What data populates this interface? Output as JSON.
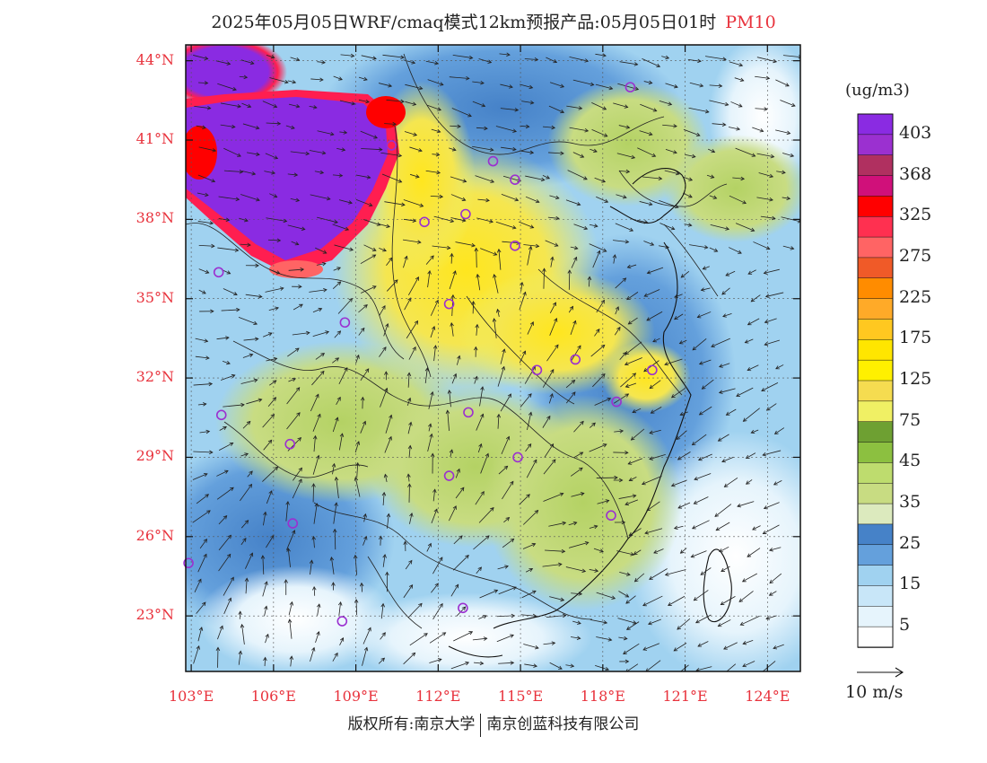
{
  "title": {
    "main": "2025年05月05日WRF/cmaq模式12km预报产品:05月05日01时",
    "pollutant": "PM10"
  },
  "axes": {
    "lat_labels": [
      "44°N",
      "41°N",
      "38°N",
      "35°N",
      "32°N",
      "29°N",
      "26°N",
      "23°N"
    ],
    "lat_values": [
      44,
      41,
      38,
      35,
      32,
      29,
      26,
      23
    ],
    "lon_labels": [
      "103°E",
      "106°E",
      "109°E",
      "112°E",
      "115°E",
      "118°E",
      "121°E",
      "124°E"
    ],
    "lon_values": [
      103,
      106,
      109,
      112,
      115,
      118,
      121,
      124
    ],
    "lat_range": [
      20.9,
      44.6
    ],
    "lon_range": [
      102.8,
      125.2
    ]
  },
  "colorbar": {
    "unit": "(ug/m3)",
    "labels": [
      "403",
      "368",
      "325",
      "275",
      "225",
      "175",
      "125",
      "75",
      "45",
      "35",
      "25",
      "15",
      "5"
    ],
    "colors": [
      "#8a2be2",
      "#9b30d0",
      "#b03060",
      "#d0107a",
      "#ff0000",
      "#ff3050",
      "#ff6464",
      "#f05a28",
      "#ff8c00",
      "#ffaa28",
      "#ffc820",
      "#ffe600",
      "#fff000",
      "#f5dc50",
      "#f0f064",
      "#6ea032",
      "#8cc040",
      "#bedc6e",
      "#c8dc82",
      "#dceabe",
      "#4682c8",
      "#64a0dc",
      "#a0d2f0",
      "#c8e6f8",
      "#e6f4fc",
      "#ffffff"
    ]
  },
  "wind": {
    "reference_label": "10 m/s"
  },
  "copyright": {
    "left": "版权所有:南京大学",
    "right": "南京创蓝科技有限公司"
  },
  "cities": [
    {
      "lon": 119.0,
      "lat": 43.0
    },
    {
      "lon": 110.3,
      "lat": 40.8
    },
    {
      "lon": 114.0,
      "lat": 40.2
    },
    {
      "lon": 114.8,
      "lat": 39.5
    },
    {
      "lon": 113.0,
      "lat": 38.2
    },
    {
      "lon": 111.5,
      "lat": 37.9
    },
    {
      "lon": 114.8,
      "lat": 37.0
    },
    {
      "lon": 104.0,
      "lat": 36.0
    },
    {
      "lon": 112.4,
      "lat": 34.8
    },
    {
      "lon": 108.6,
      "lat": 34.1
    },
    {
      "lon": 117.0,
      "lat": 32.7
    },
    {
      "lon": 115.6,
      "lat": 32.3
    },
    {
      "lon": 119.8,
      "lat": 32.3
    },
    {
      "lon": 118.5,
      "lat": 31.1
    },
    {
      "lon": 113.1,
      "lat": 30.7
    },
    {
      "lon": 104.1,
      "lat": 30.6
    },
    {
      "lon": 106.6,
      "lat": 29.5
    },
    {
      "lon": 114.9,
      "lat": 29.0
    },
    {
      "lon": 112.4,
      "lat": 28.3
    },
    {
      "lon": 118.3,
      "lat": 26.8
    },
    {
      "lon": 106.7,
      "lat": 26.5
    },
    {
      "lon": 102.9,
      "lat": 25.0
    },
    {
      "lon": 108.5,
      "lat": 22.8
    },
    {
      "lon": 112.9,
      "lat": 23.3
    }
  ]
}
